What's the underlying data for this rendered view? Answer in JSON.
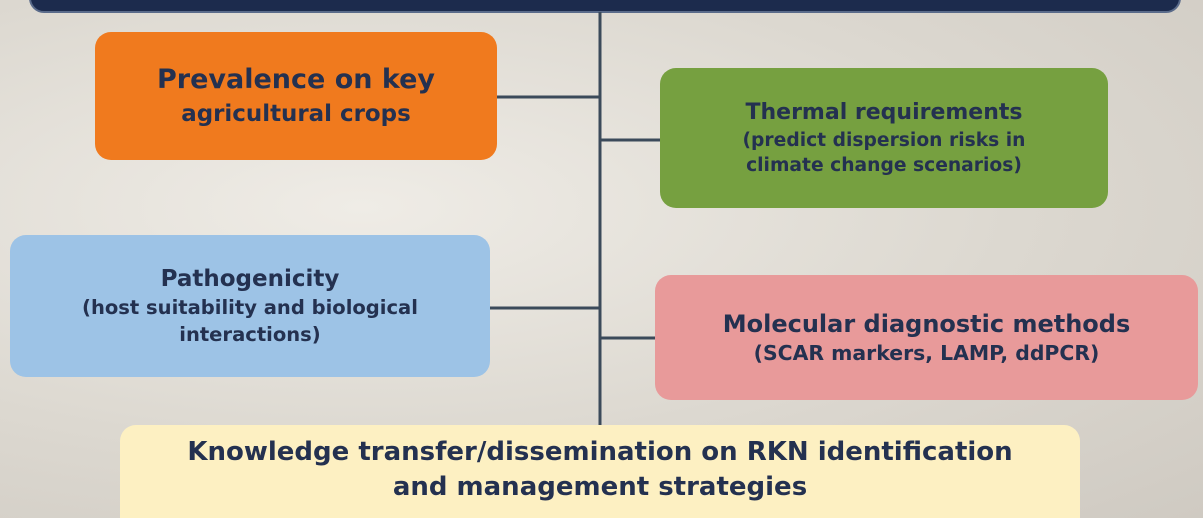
{
  "nodes": [
    {
      "lines": [
        "Prevalence on key",
        "agricultural crops"
      ]
    },
    {
      "lines": [
        "Thermal requirements",
        "(predict dispersion risks  in",
        "climate change scenarios)"
      ]
    },
    {
      "lines": [
        "Pathogenicity",
        "(host suitability and biological",
        "interactions)"
      ]
    },
    {
      "lines": [
        "Molecular diagnostic methods",
        "(SCAR markers, LAMP, ddPCR)"
      ]
    },
    {
      "lines": [
        "Knowledge transfer/dissemination on RKN identification",
        "and management strategies"
      ]
    }
  ]
}
